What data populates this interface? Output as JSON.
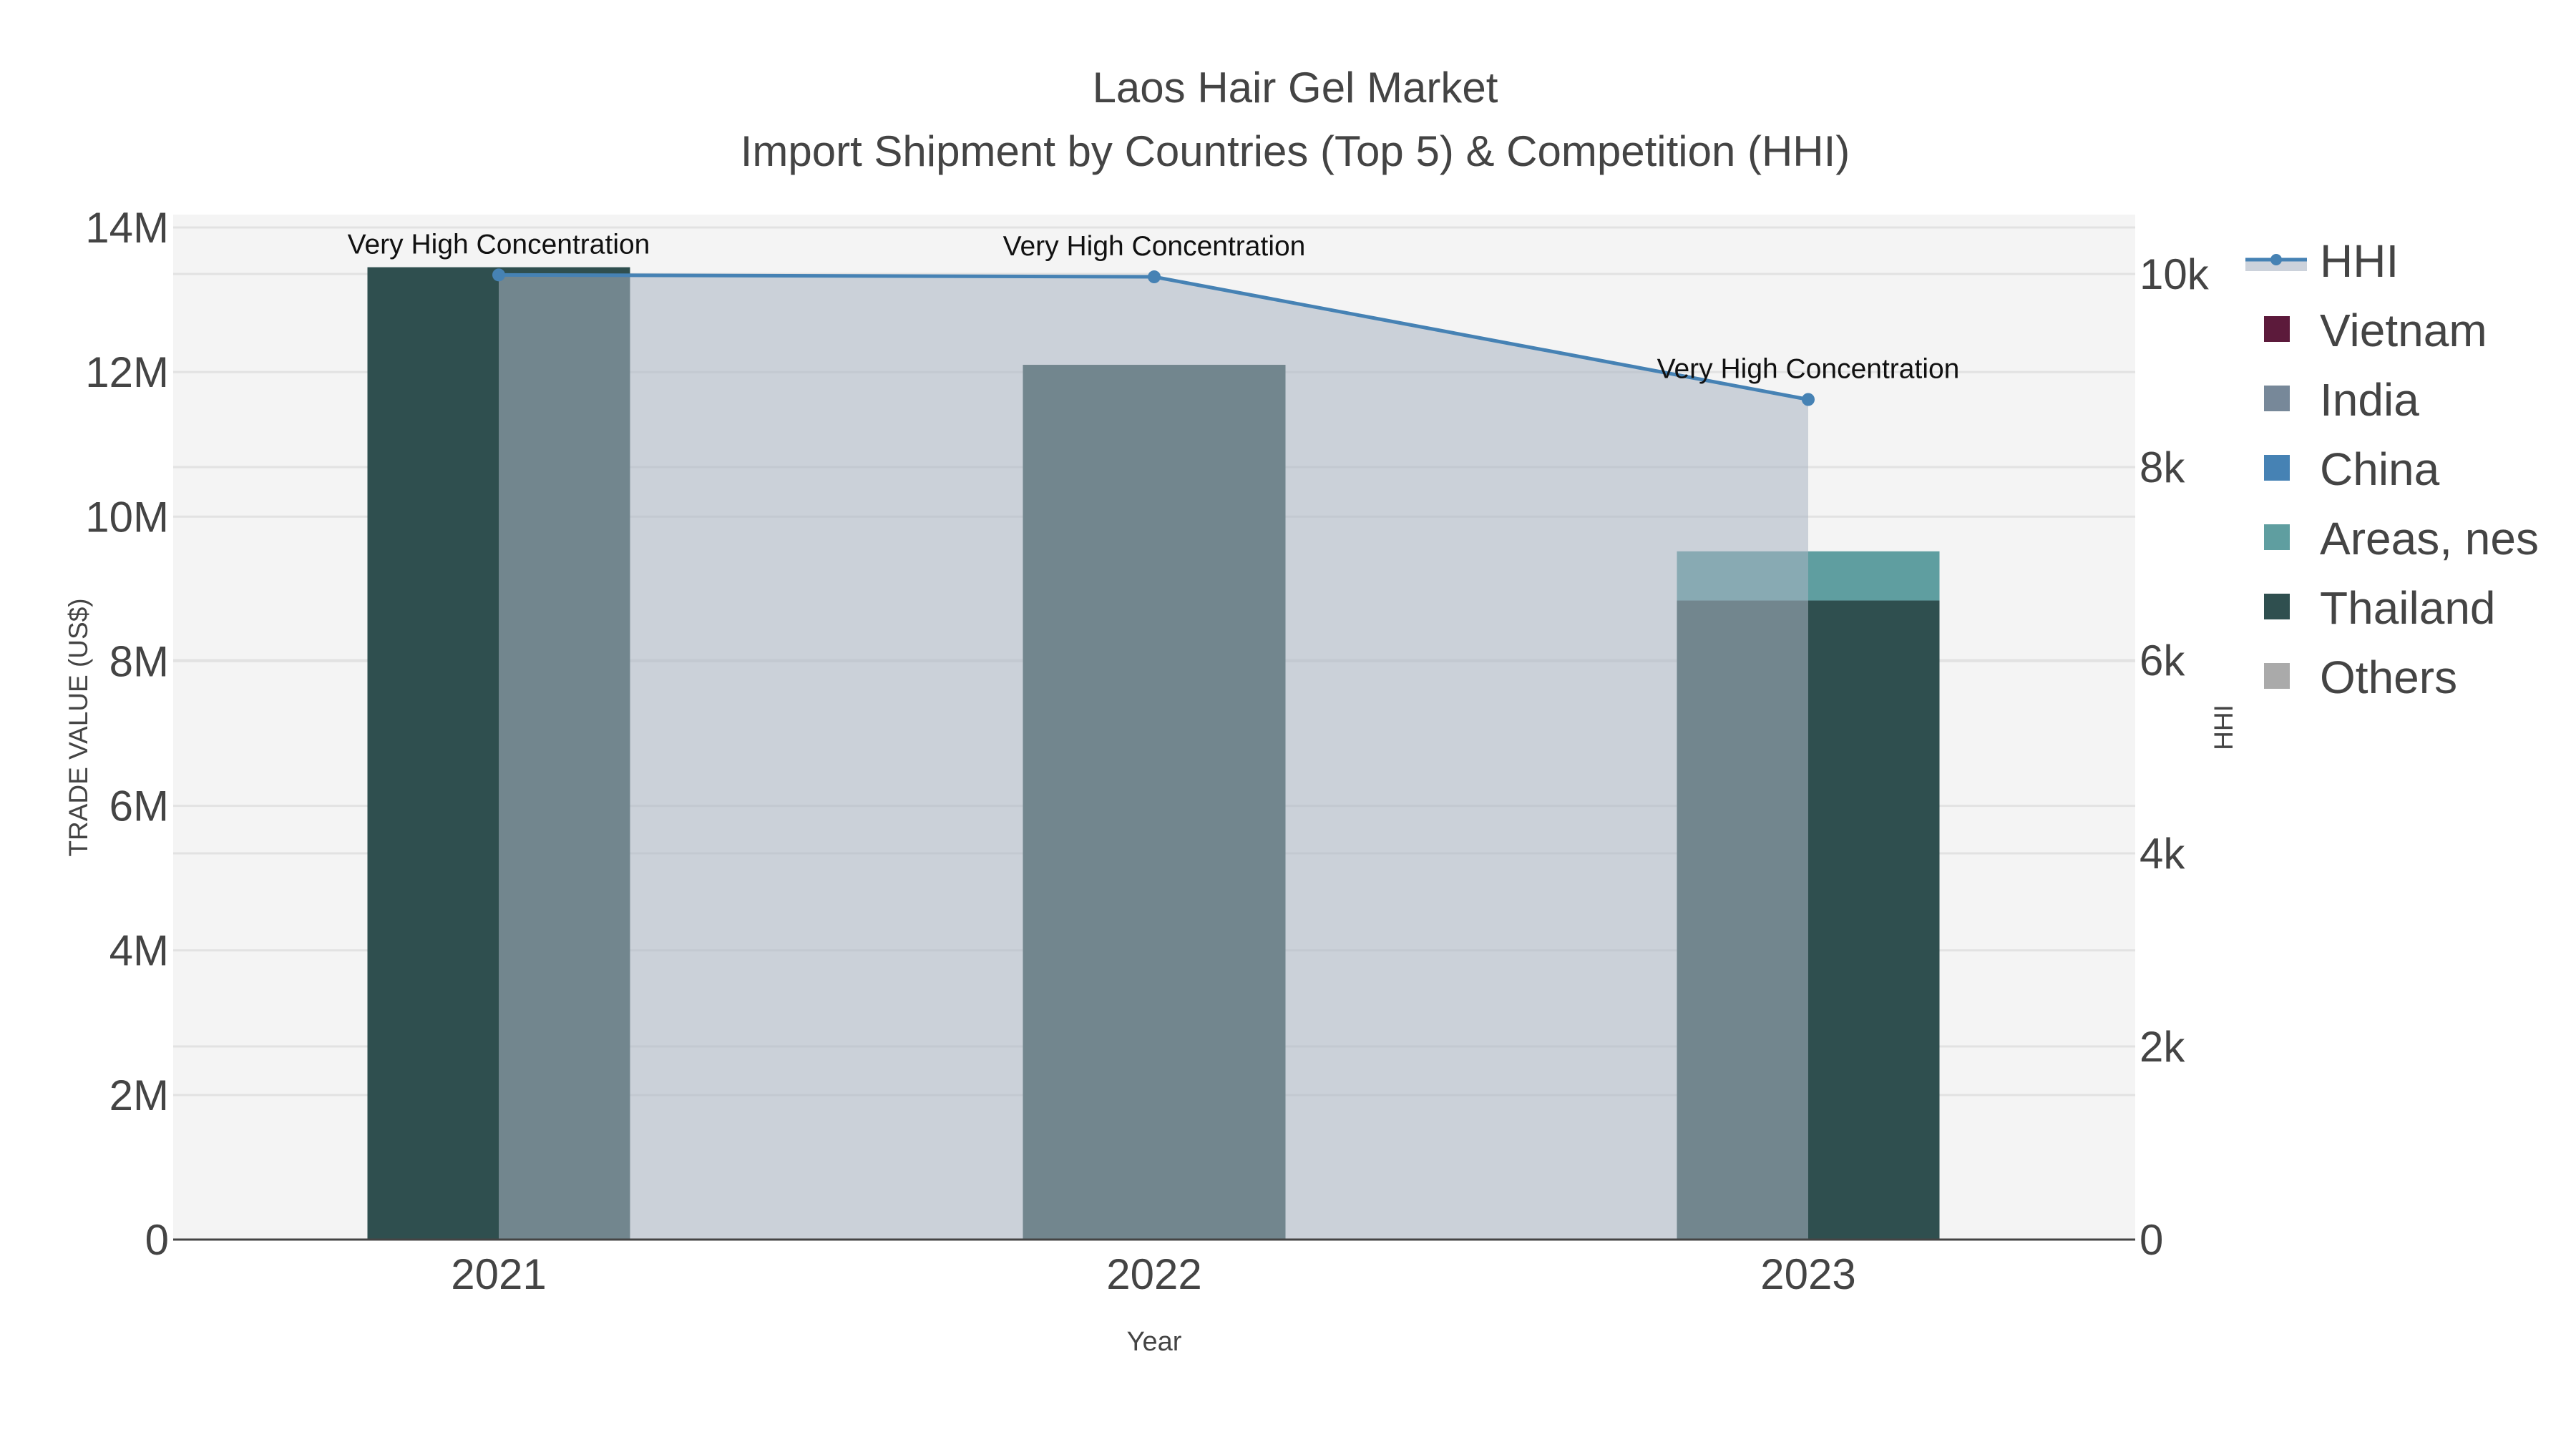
{
  "chart_data": {
    "type": "bar",
    "title": "Laos Hair Gel Market",
    "subtitle": "Import Shipment by Countries (Top 5) & Competition (HHI)",
    "xlabel": "Year",
    "ylabel": "TRADE VALUE (US$)",
    "y2label": "HHI",
    "categories": [
      "2021",
      "2022",
      "2023"
    ],
    "ylim": [
      0,
      14000000
    ],
    "y2lim": [
      0,
      10500
    ],
    "yticks": [
      {
        "v": 0,
        "label": "0"
      },
      {
        "v": 2000000,
        "label": "2M"
      },
      {
        "v": 4000000,
        "label": "4M"
      },
      {
        "v": 6000000,
        "label": "6M"
      },
      {
        "v": 8000000,
        "label": "8M"
      },
      {
        "v": 10000000,
        "label": "10M"
      },
      {
        "v": 12000000,
        "label": "12M"
      },
      {
        "v": 14000000,
        "label": "14M"
      }
    ],
    "y2ticks": [
      {
        "v": 0,
        "label": "0"
      },
      {
        "v": 2000,
        "label": "2k"
      },
      {
        "v": 4000,
        "label": "4k"
      },
      {
        "v": 6000,
        "label": "6k"
      },
      {
        "v": 8000,
        "label": "8k"
      },
      {
        "v": 10000,
        "label": "10k"
      }
    ],
    "barmode": "stack",
    "series": [
      {
        "name": "Vietnam",
        "color": "#5c1a3b",
        "values": [
          0,
          0,
          0
        ]
      },
      {
        "name": "India",
        "color": "#778899",
        "values": [
          0,
          0,
          0
        ]
      },
      {
        "name": "China",
        "color": "#4682b4",
        "values": [
          0,
          0,
          0
        ]
      },
      {
        "name": "Thailand",
        "color": "#2f4f4f",
        "values": [
          13450000,
          12100000,
          8840000
        ]
      },
      {
        "name": "Areas, nes",
        "color": "#5f9ea0",
        "values": [
          0,
          0,
          680000
        ]
      },
      {
        "name": "Others",
        "color": "#aaaaaa",
        "values": [
          0,
          0,
          0
        ]
      }
    ],
    "hhi": {
      "name": "HHI",
      "color": "#4682b4",
      "values": [
        9990,
        9970,
        8700
      ],
      "annotations": [
        "Very High Concentration",
        "Very High Concentration",
        "Very High Concentration"
      ]
    },
    "legend": [
      "HHI",
      "Vietnam",
      "India",
      "China",
      "Areas, nes",
      "Thailand",
      "Others"
    ],
    "legend_position": "right",
    "grid": true
  }
}
